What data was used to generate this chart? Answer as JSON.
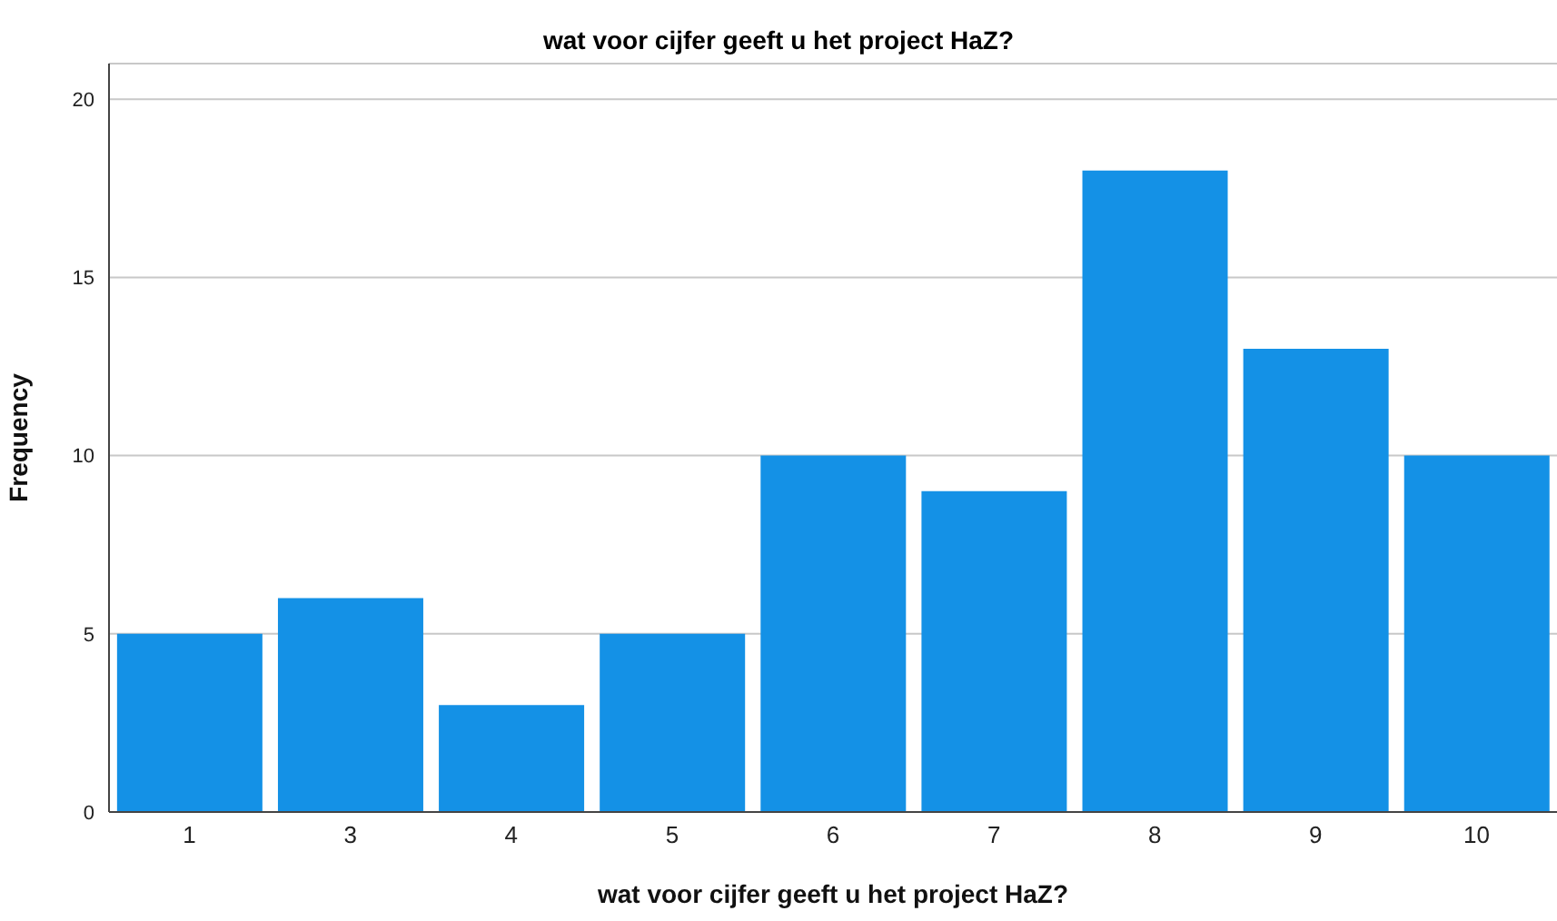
{
  "chart_data": {
    "type": "bar",
    "title": "wat voor cijfer geeft u het project HaZ?",
    "xlabel": "wat voor cijfer geeft u het project HaZ?",
    "ylabel": "Frequency",
    "categories": [
      "1",
      "3",
      "4",
      "5",
      "6",
      "7",
      "8",
      "9",
      "10"
    ],
    "values": [
      5,
      6,
      3,
      5,
      10,
      9,
      18,
      13,
      10
    ],
    "color": "#1491e6",
    "ylim": [
      0,
      21
    ],
    "yticks": [
      0,
      5,
      10,
      15,
      20
    ],
    "grid": "y"
  }
}
